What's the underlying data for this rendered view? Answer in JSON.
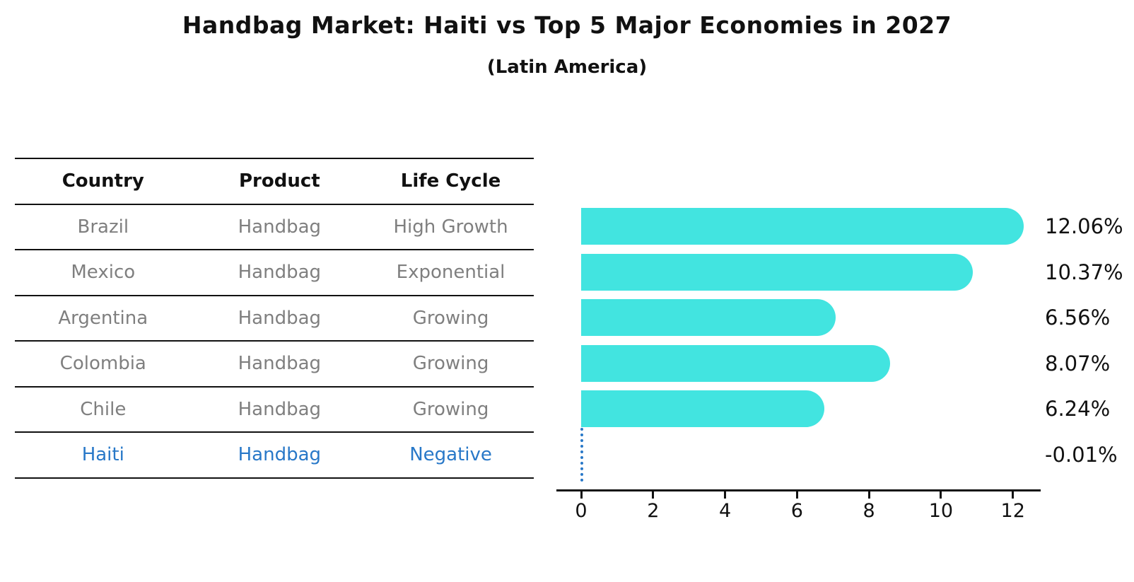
{
  "title": "Handbag Market: Haiti vs Top 5 Major Economies in 2027",
  "subtitle": "(Latin America)",
  "table": {
    "headers": [
      "Country",
      "Product",
      "Life Cycle"
    ],
    "rows": [
      {
        "country": "Brazil",
        "product": "Handbag",
        "life_cycle": "High Growth"
      },
      {
        "country": "Mexico",
        "product": "Handbag",
        "life_cycle": "Exponential"
      },
      {
        "country": "Argentina",
        "product": "Handbag",
        "life_cycle": "Growing"
      },
      {
        "country": "Colombia",
        "product": "Handbag",
        "life_cycle": "Growing"
      },
      {
        "country": "Chile",
        "product": "Handbag",
        "life_cycle": "Growing"
      },
      {
        "country": "Haiti",
        "product": "Handbag",
        "life_cycle": "Negative"
      }
    ],
    "highlighted_row": "Haiti"
  },
  "chart_data": {
    "type": "bar",
    "orientation": "horizontal",
    "categories": [
      "Brazil",
      "Mexico",
      "Argentina",
      "Colombia",
      "Chile",
      "Haiti"
    ],
    "values": [
      12.06,
      10.37,
      6.56,
      8.07,
      6.24,
      -0.01
    ],
    "value_labels": [
      "12.06%",
      "10.37%",
      "6.56%",
      "8.07%",
      "6.24%",
      "-0.01%"
    ],
    "x_ticks": [
      0,
      2,
      4,
      6,
      8,
      10,
      12
    ],
    "xlim": [
      0,
      12.3
    ],
    "grid": false,
    "legend": false,
    "bar_color": "#42e4e0",
    "highlight_color": "#2878c8",
    "value_label_color": "#111111",
    "haiti_marker": "dotted-zero-line"
  },
  "colors": {
    "background": "#ffffff",
    "bar": "#42e4e0",
    "highlight_blue": "#2878c8",
    "table_text_gray": "#7f7f7f",
    "heading_text": "#111111",
    "rule_lines": "#111111"
  }
}
